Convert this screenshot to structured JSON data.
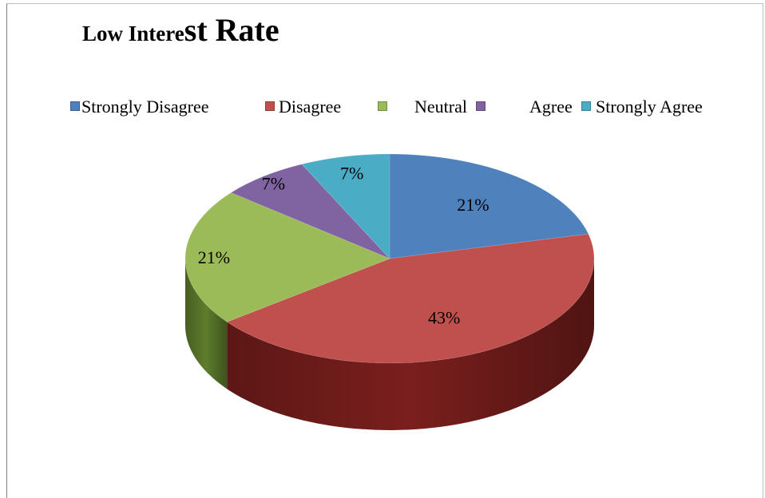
{
  "chart_data": {
    "type": "pie",
    "title_part1": "Low Intere",
    "title_part2": "st Rate",
    "categories": [
      "Strongly Disagree",
      "Disagree",
      "Neutral",
      "Agree",
      "Strongly Agree"
    ],
    "values": [
      21,
      43,
      21,
      7,
      7
    ],
    "data_labels": [
      "21%",
      "43%",
      "21%",
      "7%",
      "7%"
    ],
    "colors": [
      "#4f81bd",
      "#c0504d",
      "#9bbb59",
      "#8064a2",
      "#4bacc6"
    ],
    "side_colors": [
      "#2c4d75",
      "#7a1f1d",
      "#5e7d2c",
      "#4d3b68",
      "#2a7388"
    ],
    "legend_position": "top",
    "style": "3d-pie"
  }
}
